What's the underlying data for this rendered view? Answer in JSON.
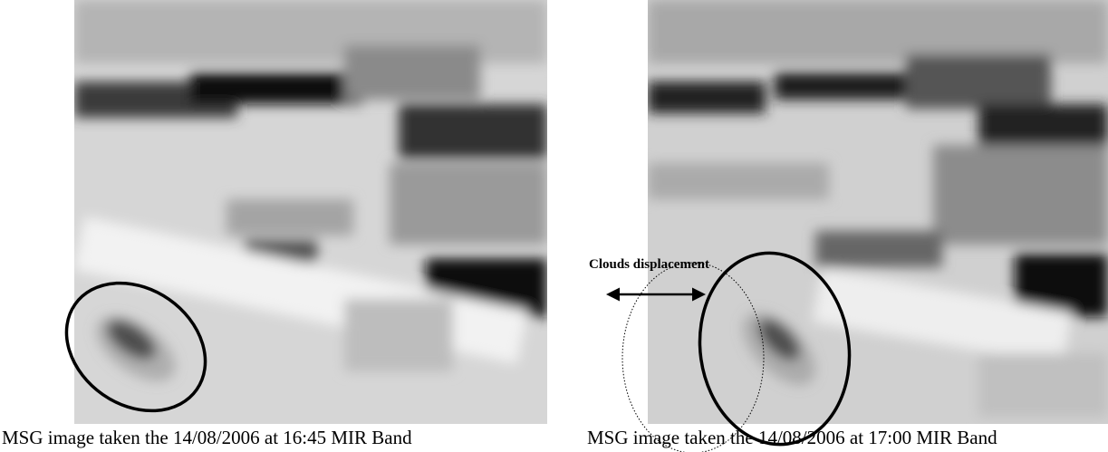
{
  "figures": [
    {
      "caption": "MSG image taken the 14/08/2006 at 16:45 MIR Band"
    },
    {
      "caption": "MSG image taken the 14/08/2006 at 17:00 MIR Band",
      "annotation": "Clouds displacement"
    }
  ]
}
